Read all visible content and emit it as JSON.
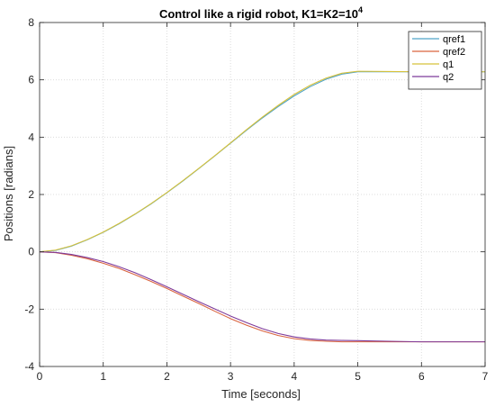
{
  "chart_data": {
    "type": "line",
    "title": "Control like a rigid robot, K1=K2=10",
    "title_superscript": "4",
    "xlabel": "Time [seconds]",
    "ylabel": "Positions [radians]",
    "xlim": [
      0,
      7
    ],
    "ylim": [
      -4,
      8
    ],
    "xticks": [
      0,
      1,
      2,
      3,
      4,
      5,
      6,
      7
    ],
    "yticks": [
      -4,
      -2,
      0,
      2,
      4,
      6,
      8
    ],
    "grid": true,
    "legend_position": "top-right",
    "series": [
      {
        "name": "qref1",
        "color": "#4fa3c7",
        "x": [
          0,
          0.25,
          0.5,
          0.75,
          1,
          1.25,
          1.5,
          1.75,
          2,
          2.25,
          2.5,
          2.75,
          3,
          3.25,
          3.5,
          3.75,
          4,
          4.25,
          4.5,
          4.75,
          5,
          5.5,
          6,
          6.5,
          7
        ],
        "y": [
          0,
          0.05,
          0.2,
          0.42,
          0.68,
          0.98,
          1.31,
          1.67,
          2.06,
          2.47,
          2.9,
          3.34,
          3.79,
          4.24,
          4.67,
          5.07,
          5.44,
          5.76,
          6.02,
          6.2,
          6.28,
          6.28,
          6.28,
          6.28,
          6.28
        ]
      },
      {
        "name": "qref2",
        "color": "#d9633f",
        "x": [
          0,
          0.25,
          0.5,
          0.75,
          1,
          1.25,
          1.5,
          1.75,
          2,
          2.25,
          2.5,
          2.75,
          3,
          3.25,
          3.5,
          3.75,
          4,
          4.25,
          4.5,
          4.75,
          5,
          5.5,
          6,
          6.5,
          7
        ],
        "y": [
          0,
          -0.03,
          -0.12,
          -0.24,
          -0.4,
          -0.58,
          -0.8,
          -1.03,
          -1.28,
          -1.54,
          -1.8,
          -2.07,
          -2.33,
          -2.56,
          -2.76,
          -2.92,
          -3.03,
          -3.09,
          -3.12,
          -3.14,
          -3.14,
          -3.14,
          -3.14,
          -3.14,
          -3.14
        ]
      },
      {
        "name": "q1",
        "color": "#d8c23a",
        "x": [
          0,
          0.25,
          0.5,
          0.75,
          1,
          1.25,
          1.5,
          1.75,
          2,
          2.25,
          2.5,
          2.75,
          3,
          3.25,
          3.5,
          3.75,
          4,
          4.25,
          4.5,
          4.75,
          5,
          5.5,
          6,
          6.5,
          7
        ],
        "y": [
          0,
          0.06,
          0.21,
          0.43,
          0.69,
          0.99,
          1.32,
          1.68,
          2.07,
          2.48,
          2.91,
          3.35,
          3.8,
          4.26,
          4.7,
          5.11,
          5.49,
          5.81,
          6.06,
          6.23,
          6.3,
          6.29,
          6.28,
          6.28,
          6.28
        ]
      },
      {
        "name": "q2",
        "color": "#7e3a9a",
        "x": [
          0,
          0.25,
          0.5,
          0.75,
          1,
          1.25,
          1.5,
          1.75,
          2,
          2.25,
          2.5,
          2.75,
          3,
          3.25,
          3.5,
          3.75,
          4,
          4.25,
          4.5,
          4.75,
          5,
          5.5,
          6,
          6.5,
          7
        ],
        "y": [
          0,
          -0.02,
          -0.09,
          -0.2,
          -0.34,
          -0.52,
          -0.73,
          -0.97,
          -1.22,
          -1.48,
          -1.74,
          -1.99,
          -2.24,
          -2.47,
          -2.68,
          -2.85,
          -2.97,
          -3.04,
          -3.08,
          -3.09,
          -3.1,
          -3.12,
          -3.14,
          -3.14,
          -3.14
        ]
      }
    ]
  }
}
